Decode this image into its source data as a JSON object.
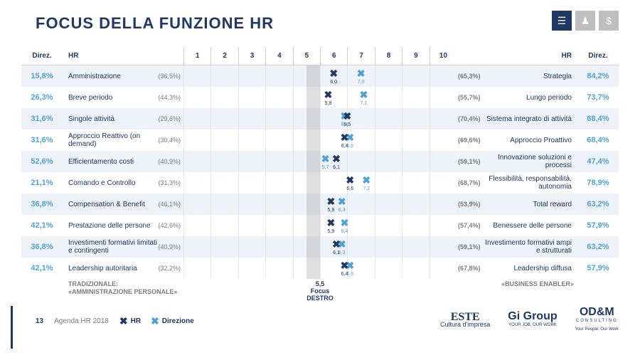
{
  "title": "FOCUS DELLA FUNZIONE HR",
  "headers": {
    "direz": "Direz.",
    "hr": "HR",
    "hr_r": "HR",
    "direz_r": "Direz."
  },
  "scale_labels": [
    "1",
    "2",
    "3",
    "4",
    "5",
    "6",
    "7",
    "8",
    "9",
    "10"
  ],
  "midband": {
    "from": 5.0,
    "to": 5.5
  },
  "rows": [
    {
      "direz_l": "15,8%",
      "hr_l": "Amministrazione",
      "hr_l_pct": "(36,5%)",
      "hr_val": 6.0,
      "dir_val": 7.0,
      "hr_txt": "6,0",
      "dir_txt": "7,0",
      "hr_r_pct": "(65,3%)",
      "hr_r": "Strategia",
      "direz_r": "84,2%",
      "bold_l": false
    },
    {
      "direz_l": "26,3%",
      "hr_l": "Breve periodo",
      "hr_l_pct": "(44,3%)",
      "hr_val": 5.8,
      "dir_val": 7.1,
      "hr_txt": "5,8",
      "dir_txt": "7,1",
      "hr_r_pct": "(55,7%)",
      "hr_r": "Lungo periodo",
      "direz_r": "73,7%",
      "bold_l": false
    },
    {
      "direz_l": "31,6%",
      "hr_l": "Singole attività",
      "hr_l_pct": "(29,6%)",
      "hr_val": 6.5,
      "dir_val": 6.4,
      "hr_txt": "6,5",
      "dir_txt": "6,4",
      "hr_r_pct": "(70,4%)",
      "hr_r": "Sistema integrato di attività",
      "direz_r": "68,4%",
      "bold_l": false
    },
    {
      "direz_l": "31,6%",
      "hr_l": "Approccio Reattivo (on demand)",
      "hr_l_pct": "(30,4%)",
      "hr_val": 6.4,
      "dir_val": 6.6,
      "hr_txt": "6,4",
      "dir_txt": "6,6",
      "hr_r_pct": "(69,6%)",
      "hr_r": "Approccio Proattivo",
      "direz_r": "68,4%",
      "bold_l": false
    },
    {
      "direz_l": "52,6%",
      "hr_l": "Efficientamento costi",
      "hr_l_pct": "(40,9%)",
      "hr_val": 6.1,
      "dir_val": 5.7,
      "hr_txt": "6,1",
      "dir_txt": "5,7",
      "hr_r_pct": "(59,1%)",
      "hr_r": "Innovazione soluzioni e processi",
      "direz_r": "47,4%",
      "bold_l": true
    },
    {
      "direz_l": "21,1%",
      "hr_l": "Comando e Controllo",
      "hr_l_pct": "(31,3%)",
      "hr_val": 6.6,
      "dir_val": 7.2,
      "hr_txt": "6,6",
      "dir_txt": "7,2",
      "hr_r_pct": "(68,7%)",
      "hr_r": "Flessibilità, responsabilità, autonomia",
      "direz_r": "78,9%",
      "bold_l": false
    },
    {
      "direz_l": "36,8%",
      "hr_l": "Compensation & Benefit",
      "hr_l_pct": "(46,1%)",
      "hr_val": 5.9,
      "dir_val": 6.3,
      "hr_txt": "5,9",
      "dir_txt": "6,3",
      "hr_r_pct": "(53,9%)",
      "hr_r": "Total reward",
      "direz_r": "63,2%",
      "bold_l": false
    },
    {
      "direz_l": "42,1%",
      "hr_l": "Prestazione delle persone",
      "hr_l_pct": "(42,6%)",
      "hr_val": 5.9,
      "dir_val": 6.4,
      "hr_txt": "5,9",
      "dir_txt": "6,4",
      "hr_r_pct": "(57,4%)",
      "hr_r": "Benessere delle persone",
      "direz_r": "57,9%",
      "bold_l": false
    },
    {
      "direz_l": "36,8%",
      "hr_l": "Investimenti formativi limitati e contingenti",
      "hr_l_pct": "(40,9%)",
      "hr_val": 6.1,
      "dir_val": 6.3,
      "hr_txt": "6,1",
      "dir_txt": "6,3",
      "hr_r_pct": "(59,1%)",
      "hr_r": "Investimento formativi ampi e strutturati",
      "direz_r": "63,2%",
      "bold_l": false
    },
    {
      "direz_l": "42,1%",
      "hr_l": "Leadership autoritaria",
      "hr_l_pct": "(32,2%)",
      "hr_val": 6.4,
      "dir_val": 6.6,
      "hr_txt": "6,4",
      "dir_txt": "6,6",
      "hr_r_pct": "(67,8%)",
      "hr_r": "Leadership diffusa",
      "direz_r": "57,9%",
      "bold_l": false
    }
  ],
  "footer": {
    "traditional_1": "TRADIZIONALE:",
    "traditional_2": "«AMMINISTRAZIONE PERSONALE»",
    "focus_1": "5,5",
    "focus_2": "Focus",
    "focus_3": "DESTRO",
    "enabler": "«BUSINESS ENABLER»"
  },
  "legend": {
    "hr": "HR",
    "dir": "Direzione"
  },
  "bottom": {
    "pageno": "13",
    "agenda": "Agenda HR 2018"
  },
  "logos": {
    "este_name": "ESTE",
    "este_tag": "Cultura d'impresa",
    "gi_name": "Gi Group",
    "gi_tag": "YOUR JOB, OUR WORK",
    "odm_name": "OD&M",
    "odm_tag": "Your People, Our Work",
    "odm_sub": "CONSULTING"
  },
  "colors": {
    "hr": "#1f3864",
    "dir": "#4da3d9"
  }
}
